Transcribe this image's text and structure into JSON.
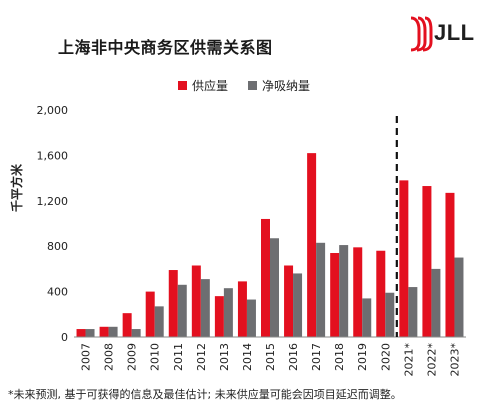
{
  "title": "上海非中央商务区供需关系图",
  "logo": {
    "text": "JLL"
  },
  "footnote": "*未来预测, 基于可获得的信息及最佳估计; 未来供应量可能会因项目延迟而调整。",
  "chart_data": {
    "type": "bar",
    "ylabel": "千平方米",
    "ylim": [
      0,
      2000
    ],
    "yticks": [
      0,
      400,
      800,
      1200,
      1600,
      2000
    ],
    "ytick_labels": [
      "0",
      "400",
      "800",
      "1,200",
      "1,600",
      "2,000"
    ],
    "categories": [
      "2007",
      "2008",
      "2009",
      "2010",
      "2011",
      "2012",
      "2013",
      "2014",
      "2015",
      "2016",
      "2017",
      "2018",
      "2019",
      "2020",
      "2021*",
      "2022*",
      "2023*"
    ],
    "series": [
      {
        "name": "供应量",
        "color": "#e3101f",
        "values": [
          70,
          90,
          210,
          400,
          590,
          630,
          360,
          490,
          1040,
          630,
          1620,
          740,
          790,
          760,
          1380,
          1330,
          1270
        ]
      },
      {
        "name": "净吸纳量",
        "color": "#6d6e71",
        "values": [
          70,
          90,
          70,
          270,
          460,
          510,
          430,
          330,
          870,
          560,
          830,
          810,
          340,
          390,
          440,
          600,
          700
        ]
      }
    ],
    "forecast_divider_after": "2020",
    "grid": false,
    "legend_position": "top-center"
  }
}
